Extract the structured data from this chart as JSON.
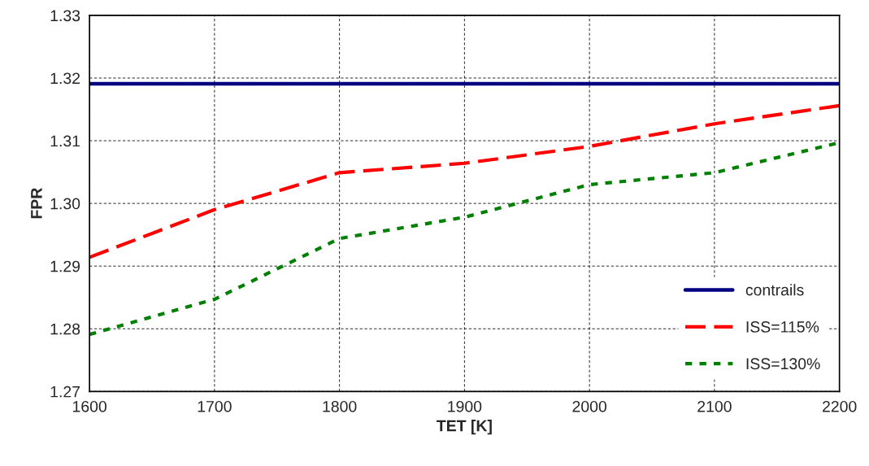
{
  "chart_data": {
    "type": "line",
    "xlabel": "TET [K]",
    "ylabel": "FPR",
    "x": [
      1600,
      1700,
      1800,
      1900,
      2000,
      2100,
      2200
    ],
    "series": [
      {
        "name": "contrails",
        "color": "#000080",
        "line_style": "solid",
        "x": [
          1600,
          2200
        ],
        "values": [
          1.3191,
          1.3191
        ]
      },
      {
        "name": "ISS=115%",
        "color": "#ff0000",
        "line_style": "dashed",
        "values": [
          1.2914,
          1.299,
          1.3049,
          1.3064,
          1.3091,
          1.3127,
          1.3156
        ]
      },
      {
        "name": "ISS=130%",
        "color": "#008000",
        "line_style": "dotted",
        "values": [
          1.2791,
          1.2847,
          1.2944,
          1.2978,
          1.303,
          1.3049,
          1.3097
        ]
      }
    ],
    "xlim": [
      1600,
      2200
    ],
    "xticks": [
      1600,
      1700,
      1800,
      1900,
      2000,
      2100,
      2200
    ],
    "ylim": [
      1.27,
      1.33
    ],
    "yticks": [
      {
        "value": 1.27,
        "label": "1.27"
      },
      {
        "value": 1.28,
        "label": "1.28"
      },
      {
        "value": 1.29,
        "label": "1.29"
      },
      {
        "value": 1.3,
        "label": "1.30"
      },
      {
        "value": 1.31,
        "label": "1.31"
      },
      {
        "value": 1.32,
        "label": "1.32"
      },
      {
        "value": 1.33,
        "label": "1.33"
      }
    ],
    "grid": true,
    "legend": "bottom right",
    "marker": "none"
  }
}
